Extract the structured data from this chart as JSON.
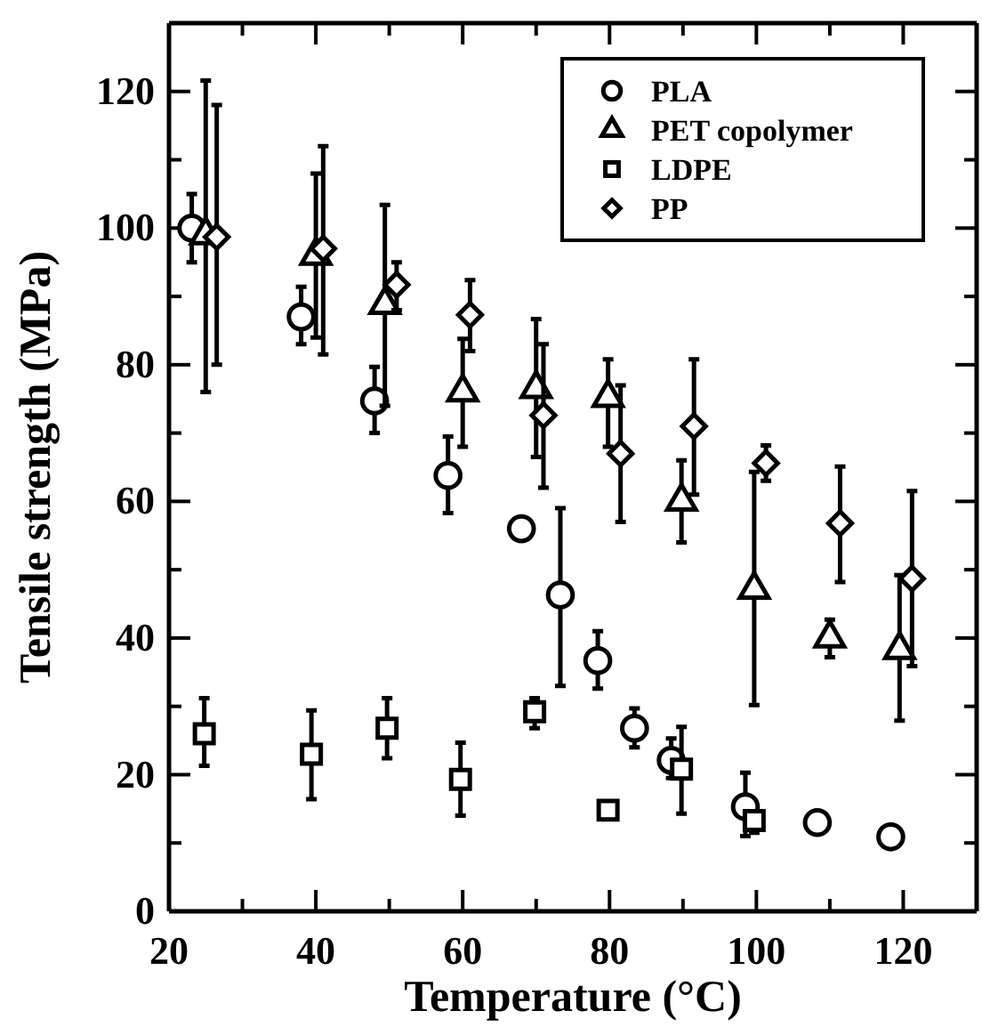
{
  "chart_data": {
    "type": "scatter",
    "xlabel": "Temperature (°C)",
    "ylabel": "Tensile strength (MPa)",
    "xlim": [
      20,
      130
    ],
    "ylim": [
      0,
      130
    ],
    "xticks": [
      20,
      {
        "value": 30,
        "label": null
      },
      40,
      {
        "value": 50,
        "label": null
      },
      60,
      {
        "value": 70,
        "label": null
      },
      80,
      {
        "value": 90,
        "label": null
      },
      100,
      {
        "value": 110,
        "label": null
      },
      120
    ],
    "yticks": [
      0,
      {
        "value": 10,
        "label": null
      },
      20,
      {
        "value": 30,
        "label": null
      },
      40,
      {
        "value": 50,
        "label": null
      },
      60,
      {
        "value": 70,
        "label": null
      },
      80,
      {
        "value": 90,
        "label": null
      },
      100,
      {
        "value": 110,
        "label": null
      },
      120
    ],
    "legend": "top right",
    "grid": false,
    "series": [
      {
        "name": "PLA",
        "color": "#000000",
        "marker": "circle",
        "x": [
          23.1,
          38,
          48,
          58,
          68,
          73.3,
          78.4,
          83.4,
          88.4,
          98.5,
          108.3,
          118.3
        ],
        "values": [
          100,
          87,
          74.7,
          63.8,
          56,
          46.3,
          36.7,
          26.8,
          22.1,
          15.3,
          13,
          10.9
        ],
        "errors": [
          [
            95,
            105
          ],
          [
            83,
            91.4
          ],
          [
            70,
            79.7
          ],
          [
            58.3,
            69.5
          ],
          null,
          [
            33,
            59
          ],
          [
            32.6,
            41
          ],
          [
            24,
            29.7
          ],
          [
            19.5,
            25.3
          ],
          [
            11,
            20.3
          ],
          null,
          null
        ]
      },
      {
        "name": "PET copolymer",
        "color": "#000000",
        "marker": "triangle",
        "x": [
          25,
          40,
          49.4,
          60,
          70,
          79.8,
          89.8,
          99.7,
          110,
          119.5
        ],
        "values": [
          99,
          96,
          88.8,
          76,
          76.5,
          75.2,
          60,
          47.1,
          40,
          38.3
        ],
        "errors": [
          [
            76,
            121.6
          ],
          [
            84,
            108
          ],
          [
            74,
            103.4
          ],
          [
            68,
            83.8
          ],
          [
            66.5,
            86.7
          ],
          [
            68,
            80.8
          ],
          [
            54,
            66
          ],
          [
            30.2,
            64.3
          ],
          [
            37.2,
            42.7
          ],
          [
            27.9,
            49.2
          ]
        ]
      },
      {
        "name": "LDPE",
        "color": "#000000",
        "marker": "square",
        "x": [
          24.8,
          39.4,
          49.7,
          59.7,
          69.8,
          79.8,
          89.8,
          99.7
        ],
        "values": [
          26,
          23,
          26.8,
          19.3,
          29.2,
          14.8,
          20.8,
          13.3
        ],
        "errors": [
          [
            21.3,
            31.2
          ],
          [
            16.4,
            29.4
          ],
          [
            22.4,
            31.2
          ],
          [
            14,
            24.7
          ],
          [
            26.8,
            31.2
          ],
          null,
          [
            14.3,
            27
          ],
          [
            11.5,
            14.5
          ]
        ]
      },
      {
        "name": "PP",
        "color": "#000000",
        "marker": "diamond",
        "x": [
          26.5,
          41,
          51,
          61,
          71,
          81.5,
          91.5,
          101.3,
          111.4,
          121.2
        ],
        "values": [
          98.7,
          97,
          91.7,
          87.3,
          72.6,
          67,
          71,
          65.6,
          56.8,
          48.7
        ],
        "errors": [
          [
            80,
            118
          ],
          [
            81.5,
            112
          ],
          [
            88,
            95
          ],
          [
            82,
            92.4
          ],
          [
            62,
            83
          ],
          [
            57,
            77
          ],
          [
            61,
            80.8
          ],
          [
            63,
            68.2
          ],
          [
            48.2,
            65.1
          ],
          [
            35.9,
            61.5
          ]
        ]
      }
    ]
  }
}
